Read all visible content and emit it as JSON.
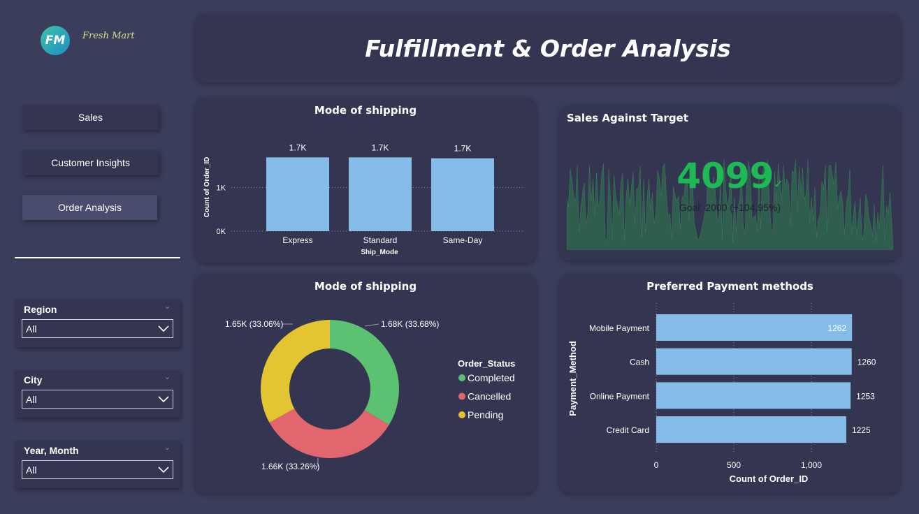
{
  "header": {
    "title": "Fulfillment & Order Analysis",
    "logo_text": "FM",
    "logo_script": "Fresh Mart"
  },
  "nav": {
    "items": [
      {
        "label": "Sales"
      },
      {
        "label": "Customer Insights"
      },
      {
        "label": "Order Analysis"
      }
    ],
    "active_index": 2
  },
  "filters": [
    {
      "label": "Region",
      "value": "All"
    },
    {
      "label": "City",
      "value": "All"
    },
    {
      "label": "Year, Month",
      "value": "All"
    }
  ],
  "shipping_card": {
    "title": "Mode of shipping"
  },
  "status_card": {
    "title": "Mode of shipping"
  },
  "kpi_card": {
    "title": "Sales Against Target",
    "value": "4099",
    "goal_text": "Goal: 2000 (+104.95%)",
    "color": "#1db954"
  },
  "payment_card": {
    "title": "Preferred Payment methods"
  },
  "chart_data": [
    {
      "type": "bar",
      "title": "Mode of shipping",
      "xlabel": "Ship_Mode",
      "ylabel": "Count of Order_ID",
      "categories": [
        "Express",
        "Standard",
        "Same-Day"
      ],
      "values": [
        1690,
        1690,
        1670
      ],
      "data_labels": [
        "1.7K",
        "1.7K",
        "1.7K"
      ],
      "y_ticks": [
        "0K",
        "1K"
      ],
      "ylim": [
        0,
        2000
      ],
      "color": "#86bde8"
    },
    {
      "type": "pie",
      "title": "Mode of shipping",
      "legend_title": "Order_Status",
      "legend_position": "right",
      "slices": [
        {
          "name": "Completed",
          "percent": 33.68,
          "label": "1.68K (33.68%)",
          "color": "#5cc171"
        },
        {
          "name": "Cancelled",
          "percent": 33.26,
          "label": "1.66K (33.26%)",
          "color": "#e1666e"
        },
        {
          "name": "Pending",
          "percent": 33.06,
          "label": "1.65K (33.06%)",
          "color": "#e3c432"
        }
      ]
    },
    {
      "type": "bar",
      "orientation": "horizontal",
      "title": "Preferred Payment methods",
      "xlabel": "Count of Order_ID",
      "ylabel": "Payment_Method",
      "categories": [
        "Mobile Payment",
        "Cash",
        "Online Payment",
        "Credit Card"
      ],
      "values": [
        1262,
        1260,
        1253,
        1225
      ],
      "x_ticks": [
        "0",
        "500",
        "1,000"
      ],
      "xlim": [
        0,
        1250
      ],
      "color": "#86bde8"
    }
  ]
}
